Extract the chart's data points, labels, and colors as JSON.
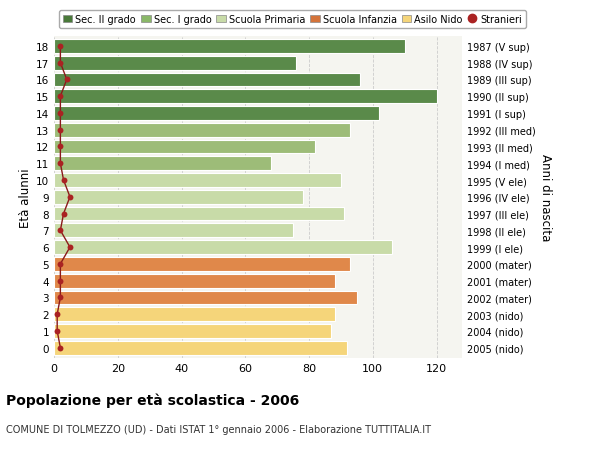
{
  "ages": [
    0,
    1,
    2,
    3,
    4,
    5,
    6,
    7,
    8,
    9,
    10,
    11,
    12,
    13,
    14,
    15,
    16,
    17,
    18
  ],
  "values": [
    92,
    87,
    88,
    95,
    88,
    93,
    106,
    75,
    91,
    78,
    90,
    68,
    82,
    93,
    102,
    120,
    96,
    76,
    110
  ],
  "right_labels": [
    "2005 (nido)",
    "2004 (nido)",
    "2003 (nido)",
    "2002 (mater)",
    "2001 (mater)",
    "2000 (mater)",
    "1999 (I ele)",
    "1998 (II ele)",
    "1997 (III ele)",
    "1996 (IV ele)",
    "1995 (V ele)",
    "1994 (I med)",
    "1993 (II med)",
    "1992 (III med)",
    "1991 (I sup)",
    "1990 (II sup)",
    "1989 (III sup)",
    "1988 (IV sup)",
    "1987 (V sup)"
  ],
  "bar_colors": [
    "#f5d57a",
    "#f5d57a",
    "#f5d57a",
    "#e0884a",
    "#e0884a",
    "#e0884a",
    "#c8dba8",
    "#c8dba8",
    "#c8dba8",
    "#c8dba8",
    "#c8dba8",
    "#9dbc78",
    "#9dbc78",
    "#9dbc78",
    "#5a8a4a",
    "#5a8a4a",
    "#5a8a4a",
    "#5a8a4a",
    "#5a8a4a"
  ],
  "stranieri_values": [
    2,
    1,
    1,
    2,
    2,
    2,
    5,
    2,
    3,
    5,
    3,
    2,
    2,
    2,
    2,
    2,
    4,
    2,
    2
  ],
  "legend_labels": [
    "Sec. II grado",
    "Sec. I grado",
    "Scuola Primaria",
    "Scuola Infanzia",
    "Asilo Nido",
    "Stranieri"
  ],
  "legend_colors": [
    "#4a7a3a",
    "#8ab868",
    "#c8dba8",
    "#d4733a",
    "#f5d57a",
    "#aa2222"
  ],
  "xlabel_main": "Popolazione per età scolastica - 2006",
  "xlabel_sub": "COMUNE DI TOLMEZZO (UD) - Dati ISTAT 1° gennaio 2006 - Elaborazione TUTTITALIA.IT",
  "ylabel_left": "Età alunni",
  "ylabel_right": "Anni di nascita",
  "xlim": [
    0,
    128
  ],
  "xticks": [
    0,
    20,
    40,
    60,
    80,
    100,
    120
  ],
  "bg_color": "#f5f5f0",
  "grid_color": "#cccccc"
}
